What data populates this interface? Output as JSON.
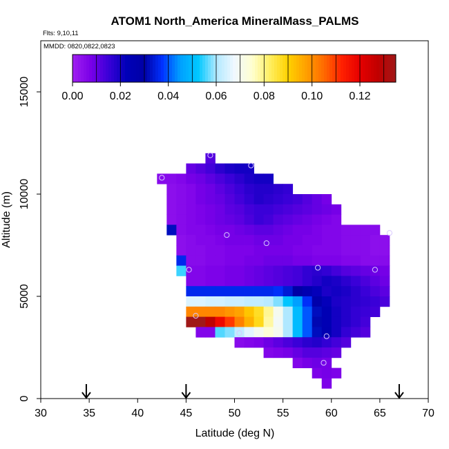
{
  "chart_data": {
    "type": "heatmap",
    "title": "ATOM1 North_America MineralMass_PALMS",
    "flights_label": "Flts: 9,10,11",
    "mmdd_label": "MMDD: 0820,0822,0823",
    "xlabel": "Latitude (deg N)",
    "ylabel": "Altitude (m)",
    "xlim": [
      30,
      70
    ],
    "ylim": [
      0,
      17500
    ],
    "x_ticks": [
      30,
      35,
      40,
      45,
      50,
      55,
      60,
      65,
      70
    ],
    "y_ticks": [
      0,
      5000,
      10000,
      15000
    ],
    "colorbar": {
      "range": [
        0,
        0.135
      ],
      "ticks": [
        0.0,
        0.02,
        0.04,
        0.06,
        0.08,
        0.1,
        0.12
      ],
      "tick_labels": [
        "0.00",
        "0.02",
        "0.04",
        "0.06",
        "0.08",
        "0.10",
        "0.12"
      ]
    },
    "cell_size": {
      "dlat": 1,
      "dalt": 500
    },
    "rows": [
      {
        "alt": 11750,
        "lat0": 47,
        "values": [
          0.012
        ]
      },
      {
        "alt": 11250,
        "lat0": 45,
        "values": [
          0.01,
          0.012,
          0.014,
          0.017,
          0.019,
          0.02,
          0.02
        ]
      },
      {
        "alt": 10750,
        "lat0": 42,
        "values": [
          0.005,
          0.005,
          0.006,
          0.008,
          0.009,
          0.011,
          0.013,
          0.015,
          0.017,
          0.019,
          0.02,
          0.02
        ]
      },
      {
        "alt": 10250,
        "lat0": 43,
        "values": [
          0.004,
          0.005,
          0.006,
          0.008,
          0.009,
          0.011,
          0.013,
          0.015,
          0.017,
          0.018,
          0.018,
          0.017,
          0.016
        ]
      },
      {
        "alt": 9750,
        "lat0": 43,
        "values": [
          0.004,
          0.005,
          0.006,
          0.008,
          0.009,
          0.01,
          0.012,
          0.014,
          0.016,
          0.018,
          0.017,
          0.016,
          0.015,
          0.014,
          0.012,
          0.01,
          0.008
        ]
      },
      {
        "alt": 9250,
        "lat0": 43,
        "values": [
          0.004,
          0.005,
          0.006,
          0.007,
          0.008,
          0.009,
          0.011,
          0.012,
          0.014,
          0.015,
          0.015,
          0.014,
          0.013,
          0.012,
          0.011,
          0.01,
          0.009,
          0.008
        ]
      },
      {
        "alt": 8750,
        "lat0": 43,
        "values": [
          0.004,
          0.005,
          0.006,
          0.007,
          0.008,
          0.009,
          0.01,
          0.011,
          0.013,
          0.015,
          0.014,
          0.012,
          0.011,
          0.01,
          0.009,
          0.008,
          0.007,
          0.006
        ]
      },
      {
        "alt": 8250,
        "lat0": 43,
        "values": [
          0.032,
          0.005,
          0.006,
          0.006,
          0.007,
          0.008,
          0.008,
          0.009,
          0.01,
          0.011,
          0.011,
          0.01,
          0.009,
          0.008,
          0.008,
          0.007,
          0.006,
          0.006,
          0.005,
          0.005,
          0.005,
          0.005
        ]
      },
      {
        "alt": 7750,
        "lat0": 44,
        "values": [
          0.004,
          0.005,
          0.006,
          0.006,
          0.007,
          0.008,
          0.008,
          0.008,
          0.009,
          0.009,
          0.009,
          0.008,
          0.008,
          0.007,
          0.007,
          0.006,
          0.006,
          0.005,
          0.005,
          0.005,
          0.004,
          0.004
        ]
      },
      {
        "alt": 7250,
        "lat0": 44,
        "values": [
          0.004,
          0.005,
          0.005,
          0.006,
          0.006,
          0.007,
          0.007,
          0.007,
          0.008,
          0.008,
          0.008,
          0.008,
          0.007,
          0.007,
          0.006,
          0.006,
          0.006,
          0.005,
          0.005,
          0.005,
          0.004,
          0.004
        ]
      },
      {
        "alt": 6750,
        "lat0": 44,
        "values": [
          0.036,
          0.005,
          0.005,
          0.006,
          0.006,
          0.007,
          0.007,
          0.008,
          0.008,
          0.009,
          0.009,
          0.009,
          0.008,
          0.008,
          0.007,
          0.007,
          0.007,
          0.006,
          0.006,
          0.005,
          0.005,
          0.005
        ]
      },
      {
        "alt": 6250,
        "lat0": 44,
        "values": [
          0.055,
          0.006,
          0.006,
          0.007,
          0.007,
          0.008,
          0.008,
          0.009,
          0.01,
          0.011,
          0.012,
          0.013,
          0.014,
          0.016,
          0.017,
          0.016,
          0.014,
          0.012,
          0.011,
          0.01,
          0.009,
          0.008
        ]
      },
      {
        "alt": 5750,
        "lat0": 45,
        "values": [
          0.006,
          0.006,
          0.007,
          0.007,
          0.008,
          0.008,
          0.009,
          0.01,
          0.011,
          0.012,
          0.013,
          0.014,
          0.016,
          0.018,
          0.02,
          0.019,
          0.017,
          0.015,
          0.013,
          0.011,
          0.009
        ]
      },
      {
        "alt": 5250,
        "lat0": 45,
        "values": [
          0.036,
          0.036,
          0.036,
          0.036,
          0.036,
          0.036,
          0.036,
          0.036,
          0.036,
          0.037,
          0.034,
          0.03,
          0.026,
          0.022,
          0.019,
          0.02,
          0.019,
          0.017,
          0.015,
          0.013,
          0.011
        ]
      },
      {
        "alt": 4750,
        "lat0": 45,
        "values": [
          0.065,
          0.065,
          0.064,
          0.064,
          0.063,
          0.063,
          0.062,
          0.062,
          0.061,
          0.058,
          0.052,
          0.045,
          0.037,
          0.028,
          0.022,
          0.019,
          0.018,
          0.017,
          0.016,
          0.015,
          0.013
        ]
      },
      {
        "alt": 4250,
        "lat0": 45,
        "values": [
          0.101,
          0.101,
          0.101,
          0.101,
          0.099,
          0.097,
          0.092,
          0.087,
          0.079,
          0.07,
          0.06,
          0.05,
          0.04,
          0.032,
          0.024,
          0.02,
          0.018,
          0.016,
          0.015,
          0.014
        ]
      },
      {
        "alt": 3750,
        "lat0": 45,
        "values": [
          0.135,
          0.135,
          0.128,
          0.118,
          0.11,
          0.102,
          0.095,
          0.088,
          0.078,
          0.069,
          0.06,
          0.05,
          0.04,
          0.031,
          0.024,
          0.02,
          0.018,
          0.016,
          0.014
        ]
      },
      {
        "alt": 3250,
        "lat0": 46,
        "values": [
          0.006,
          0.006,
          0.056,
          0.058,
          0.062,
          0.066,
          0.07,
          0.074,
          0.07,
          0.06,
          0.05,
          0.04,
          0.032,
          0.025,
          0.02,
          0.016,
          0.014,
          0.012
        ]
      },
      {
        "alt": 2750,
        "lat0": 50,
        "values": [
          0.005,
          0.006,
          0.007,
          0.009,
          0.011,
          0.013,
          0.015,
          0.017,
          0.018,
          0.016,
          0.014,
          0.012
        ]
      },
      {
        "alt": 2250,
        "lat0": 53,
        "values": [
          0.006,
          0.007,
          0.008,
          0.01,
          0.012,
          0.012,
          0.011,
          0.01
        ]
      },
      {
        "alt": 1750,
        "lat0": 56,
        "values": [
          0.006,
          0.008,
          0.009,
          0.008
        ]
      },
      {
        "alt": 1250,
        "lat0": 58,
        "values": [
          0.007,
          0.008,
          0.007
        ]
      },
      {
        "alt": 750,
        "lat0": 59,
        "values": [
          0.007
        ]
      }
    ],
    "markers": [
      {
        "lat": 47.5,
        "alt": 11900
      },
      {
        "lat": 51.7,
        "alt": 11400
      },
      {
        "lat": 42.5,
        "alt": 10800
      },
      {
        "lat": 49.2,
        "alt": 8000
      },
      {
        "lat": 53.3,
        "alt": 7600
      },
      {
        "lat": 66.0,
        "alt": 8100
      },
      {
        "lat": 45.3,
        "alt": 6300
      },
      {
        "lat": 58.6,
        "alt": 6400
      },
      {
        "lat": 64.5,
        "alt": 6300
      },
      {
        "lat": 46.0,
        "alt": 4050
      },
      {
        "lat": 50.5,
        "alt": 3200
      },
      {
        "lat": 59.5,
        "alt": 3050
      },
      {
        "lat": 59.2,
        "alt": 1750
      }
    ],
    "arrows_lat": [
      34.7,
      45.0,
      67.0
    ],
    "colors": {
      "axis": "#000000",
      "marker": "#d8c8ff",
      "colormap": [
        "#a020f0",
        "#7a00e8",
        "#3a00d8",
        "#0000b8",
        "#0000a6",
        "#0032ff",
        "#00a0ff",
        "#00c8ff",
        "#b0e8ff",
        "#f0f8ff",
        "#ffffd0",
        "#ffee60",
        "#ffd200",
        "#ffa000",
        "#ff6a00",
        "#ff2000",
        "#e60000",
        "#c00000",
        "#a01818"
      ]
    }
  }
}
